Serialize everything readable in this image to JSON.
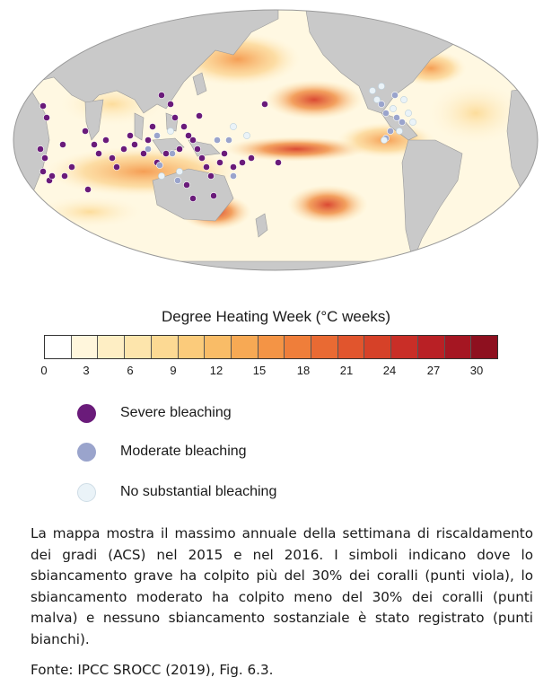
{
  "map": {
    "colors": {
      "land": "#c9c9c9",
      "ocean_base": "#fff8e2",
      "severe": "#6a1b7a",
      "moderate": "#9aa4cc",
      "none": "#eaf3f8"
    }
  },
  "legend": {
    "title": "Degree Heating Week (°C weeks)",
    "scale": [
      "#ffffff",
      "#fff6dc",
      "#feeec4",
      "#fde5ac",
      "#fcd993",
      "#fbcb7b",
      "#f9bc67",
      "#f7a954",
      "#f49445",
      "#ef7e3a",
      "#e96a33",
      "#e1552d",
      "#d64128",
      "#c92e27",
      "#b92025",
      "#a51622",
      "#8e101f"
    ],
    "ticks": [
      "0",
      "3",
      "6",
      "9",
      "12",
      "15",
      "18",
      "21",
      "24",
      "27",
      "30"
    ],
    "items": [
      {
        "label": "Severe bleaching",
        "color": "#6a1b7a"
      },
      {
        "label": "Moderate bleaching",
        "color": "#9aa4cc"
      },
      {
        "label": "No substantial bleaching",
        "color": "#eaf3f8"
      }
    ]
  },
  "caption": {
    "text": "La mappa mostra il massimo annuale della settimana di riscaldamento dei gradi (ACS) nel 2015 e nel 2016. I simboli indicano dove lo sbiancamento grave ha colpito più del 30% dei coralli (punti viola), lo sbiancamento moderato ha colpito meno del 30% dei coralli (punti malva) e nessuno sbiancamento sostanziale è stato registrato (punti bianchi).",
    "source": "Fonte: IPCC SROCC (2019), Fig. 6.3."
  }
}
